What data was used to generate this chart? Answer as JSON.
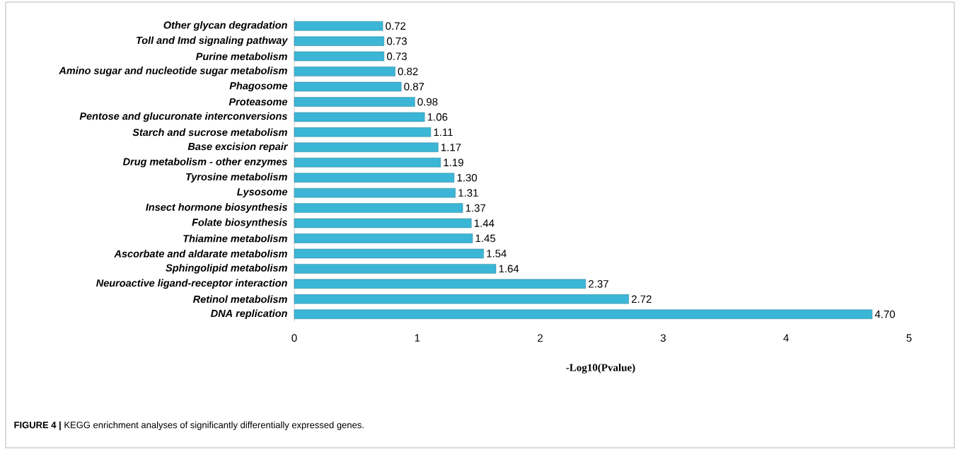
{
  "chart_data": {
    "type": "bar",
    "orientation": "horizontal",
    "categories": [
      "Other glycan degradation",
      "Toll and Imd signaling pathway",
      "Purine metabolism",
      "Amino sugar and nucleotide sugar metabolism",
      "Phagosome",
      "Proteasome",
      "Pentose and glucuronate interconversions",
      "Starch and sucrose metabolism",
      "Base excision repair",
      "Drug metabolism - other enzymes",
      "Tyrosine metabolism",
      "Lysosome",
      "Insect hormone biosynthesis",
      "Folate biosynthesis",
      "Thiamine metabolism",
      "Ascorbate and aldarate metabolism",
      "Sphingolipid metabolism",
      "Neuroactive ligand-receptor interaction",
      "Retinol metabolism",
      "DNA replication"
    ],
    "values": [
      0.72,
      0.73,
      0.73,
      0.82,
      0.87,
      0.98,
      1.06,
      1.11,
      1.17,
      1.19,
      1.3,
      1.31,
      1.37,
      1.44,
      1.45,
      1.54,
      1.64,
      2.37,
      2.72,
      4.7
    ],
    "value_labels": [
      "0.72",
      "0.73",
      "0.73",
      "0.82",
      "0.87",
      "0.98",
      "1.06",
      "1.11",
      "1.17",
      "1.19",
      "1.30",
      "1.31",
      "1.37",
      "1.44",
      "1.45",
      "1.54",
      "1.64",
      "2.37",
      "2.72",
      "4.70"
    ],
    "color": "#3bb6d6",
    "xlim": [
      0,
      5
    ],
    "xticks": [
      0,
      1,
      2,
      3,
      4,
      5
    ],
    "xlabel": "-Log10(Pvalue)",
    "annotations": [
      "**FIGURE 4 |** KEGG enrichment analyses of significantly differentially expressed genes."
    ]
  }
}
